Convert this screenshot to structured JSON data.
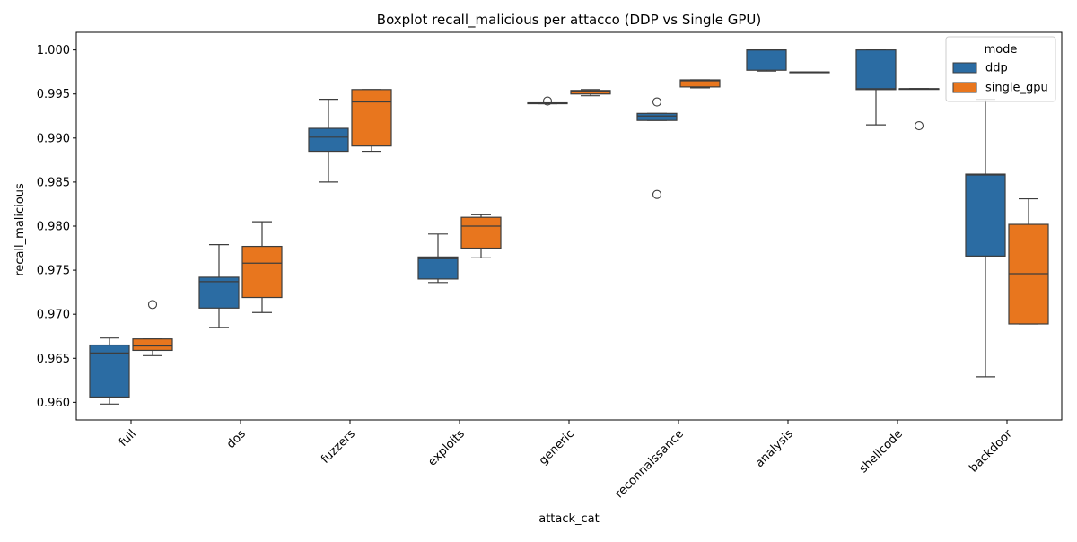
{
  "chart_data": {
    "type": "boxplot",
    "title": "Boxplot recall_malicious per attacco (DDP vs Single GPU)",
    "xlabel": "attack_cat",
    "ylabel": "recall_malicious",
    "ylim": [
      0.958,
      1.002
    ],
    "yticks": [
      "0.960",
      "0.965",
      "0.970",
      "0.975",
      "0.980",
      "0.985",
      "0.990",
      "0.995",
      "1.000"
    ],
    "grid": false,
    "legend": {
      "title": "mode",
      "placement": "top-right"
    },
    "categories": [
      "full",
      "dos",
      "fuzzers",
      "exploits",
      "generic",
      "reconnaissance",
      "analysis",
      "shellcode",
      "backdoor"
    ],
    "series": [
      {
        "name": "ddp",
        "color": "#2b6ca3",
        "boxes": [
          {
            "whislo": 0.9598,
            "q1": 0.9606,
            "med": 0.9656,
            "q3": 0.9665,
            "whishi": 0.9673,
            "fliers": []
          },
          {
            "whislo": 0.9685,
            "q1": 0.9707,
            "med": 0.9737,
            "q3": 0.9742,
            "whishi": 0.9779,
            "fliers": []
          },
          {
            "whislo": 0.985,
            "q1": 0.9885,
            "med": 0.9901,
            "q3": 0.9911,
            "whishi": 0.9944,
            "fliers": []
          },
          {
            "whislo": 0.9736,
            "q1": 0.974,
            "med": 0.9763,
            "q3": 0.9765,
            "whishi": 0.9791,
            "fliers": []
          },
          {
            "whislo": 0.9939,
            "q1": 0.9939,
            "med": 0.994,
            "q3": 0.994,
            "whishi": 0.994,
            "fliers": [
              0.9942
            ]
          },
          {
            "whislo": 0.992,
            "q1": 0.992,
            "med": 0.9925,
            "q3": 0.9928,
            "whishi": 0.9928,
            "fliers": [
              0.9941,
              0.9836
            ]
          },
          {
            "whislo": 0.9976,
            "q1": 0.9977,
            "med": 1.0,
            "q3": 1.0,
            "whishi": 1.0,
            "fliers": []
          },
          {
            "whislo": 0.9915,
            "q1": 0.9955,
            "med": 0.9956,
            "q3": 1.0,
            "whishi": 1.0,
            "fliers": []
          },
          {
            "whislo": 0.9629,
            "q1": 0.9766,
            "med": 0.9858,
            "q3": 0.9859,
            "whishi": 0.9944,
            "fliers": []
          }
        ]
      },
      {
        "name": "single_gpu",
        "color": "#e8761e",
        "boxes": [
          {
            "whislo": 0.9653,
            "q1": 0.9659,
            "med": 0.9664,
            "q3": 0.9672,
            "whishi": 0.9672,
            "fliers": [
              0.9711
            ]
          },
          {
            "whislo": 0.9702,
            "q1": 0.9719,
            "med": 0.9758,
            "q3": 0.9777,
            "whishi": 0.9805,
            "fliers": []
          },
          {
            "whislo": 0.9885,
            "q1": 0.9891,
            "med": 0.9941,
            "q3": 0.9955,
            "whishi": 0.9955,
            "fliers": []
          },
          {
            "whislo": 0.9764,
            "q1": 0.9775,
            "med": 0.98,
            "q3": 0.981,
            "whishi": 0.9813,
            "fliers": []
          },
          {
            "whislo": 0.9948,
            "q1": 0.995,
            "med": 0.9953,
            "q3": 0.9954,
            "whishi": 0.9955,
            "fliers": []
          },
          {
            "whislo": 0.9957,
            "q1": 0.9958,
            "med": 0.9965,
            "q3": 0.9966,
            "whishi": 0.9966,
            "fliers": []
          },
          {
            "whislo": 0.9975,
            "q1": 0.9975,
            "med": 0.9975,
            "q3": 0.9975,
            "whishi": 0.9975,
            "fliers": []
          },
          {
            "whislo": 0.9956,
            "q1": 0.9956,
            "med": 0.9956,
            "q3": 0.9956,
            "whishi": 0.9956,
            "fliers": [
              0.9914
            ]
          },
          {
            "whislo": 0.9689,
            "q1": 0.9689,
            "med": 0.9746,
            "q3": 0.9802,
            "whishi": 0.9831,
            "fliers": []
          }
        ]
      }
    ]
  }
}
